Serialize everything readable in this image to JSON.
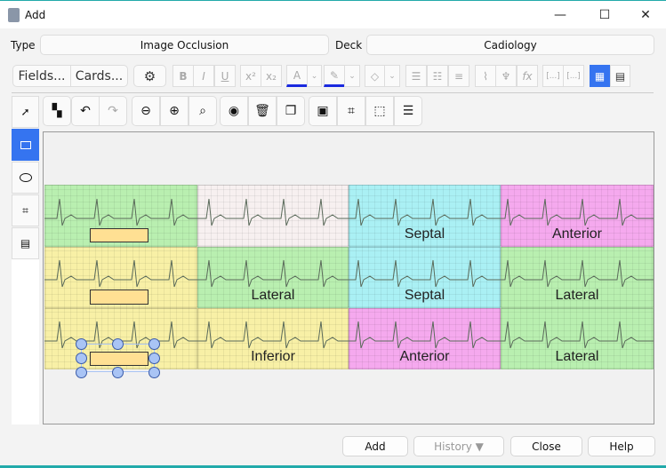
{
  "window": {
    "title": "Add",
    "icon": "anki-icon",
    "controls": [
      "minimize-icon",
      "maximize-icon",
      "close-icon"
    ]
  },
  "type": {
    "label": "Type",
    "value": "Image Occlusion"
  },
  "deck": {
    "label": "Deck",
    "value": "Cadiology"
  },
  "editor_toolbar": {
    "fields": "Fields...",
    "cards": "Cards...",
    "bold": "B",
    "italic": "I",
    "underline": "U",
    "superscript": "x²",
    "subscript": "x₂",
    "text_color": "A",
    "fx": "fx",
    "cloze": "[...]",
    "cloze2": "[...]"
  },
  "io_tools": [
    "select",
    "rectangle",
    "ellipse",
    "polygon",
    "text"
  ],
  "io_active_tool": "rectangle",
  "image": {
    "cells": [
      [
        "",
        "",
        "Septal",
        "Anterior"
      ],
      [
        "",
        "Lateral",
        "Septal",
        "Lateral"
      ],
      [
        "",
        "Inferior",
        "Anterior",
        "Lateral"
      ]
    ],
    "colors": [
      [
        "#b9efb0",
        "#f7f0f0",
        "#aaf0f4",
        "#f5a9ee"
      ],
      [
        "#f8f0a6",
        "#b9efb0",
        "#aaf0f4",
        "#b9efb0"
      ],
      [
        "#f8f0a6",
        "#f8f0a6",
        "#f5a9ee",
        "#b9efb0"
      ]
    ]
  },
  "accent": "#3574f0",
  "buttons": {
    "add": "Add",
    "history": "History ▼",
    "close": "Close",
    "help": "Help"
  }
}
